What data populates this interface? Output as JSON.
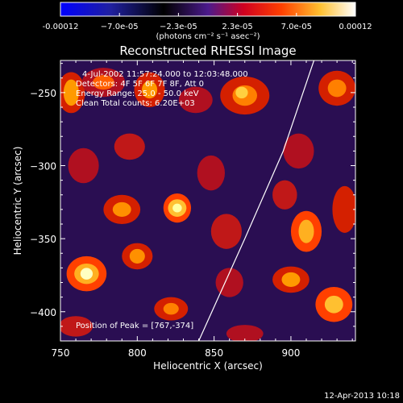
{
  "chart_data": {
    "type": "heatmap",
    "title": "Reconstructed RHESSI Image",
    "xlabel": "Heliocentric X (arcsec)",
    "ylabel": "Heliocentric Y (arcsec)",
    "xlim": [
      750,
      942
    ],
    "ylim": [
      -420,
      -228
    ],
    "x_ticks": [
      {
        "value": 750,
        "label": "750"
      },
      {
        "value": 800,
        "label": "800"
      },
      {
        "value": 850,
        "label": "850"
      },
      {
        "value": 900,
        "label": "900"
      }
    ],
    "y_ticks": [
      {
        "value": -250,
        "label": "−250"
      },
      {
        "value": -300,
        "label": "−300"
      },
      {
        "value": -350,
        "label": "−350"
      },
      {
        "value": -400,
        "label": "−400"
      }
    ],
    "colorbar": {
      "min": -0.00012,
      "max": 0.00012,
      "tick_labels": [
        "-0.00012",
        "−7.0e-05",
        "−2.3e-05",
        "2.3e-05",
        "7.0e-05",
        "0.00012"
      ],
      "units": "(photons cm⁻² s⁻¹ asec⁻²)",
      "colormap": [
        "#0000ff",
        "#000000",
        "#4b1a8c",
        "#ff0000",
        "#ffa000",
        "#ffff60",
        "#ffffff"
      ]
    },
    "annotations": [
      "4-Jul-2002 11:57:24.000 to 12:03:48.000",
      "Detectors: 4F 5F 6F 7F 8F, Att 0",
      "Energy Range: 25.0 - 50.0 keV",
      "Clean     Total counts: 6.20E+03",
      "Position of Peak = [767,-374]"
    ],
    "limb_curve": [
      [
        840,
        -420
      ],
      [
        870,
        -350
      ],
      [
        895,
        -290
      ],
      [
        915,
        -228
      ]
    ],
    "peak": {
      "x": 767,
      "y": -374
    },
    "timestamp": "12-Apr-2013 10:18"
  }
}
